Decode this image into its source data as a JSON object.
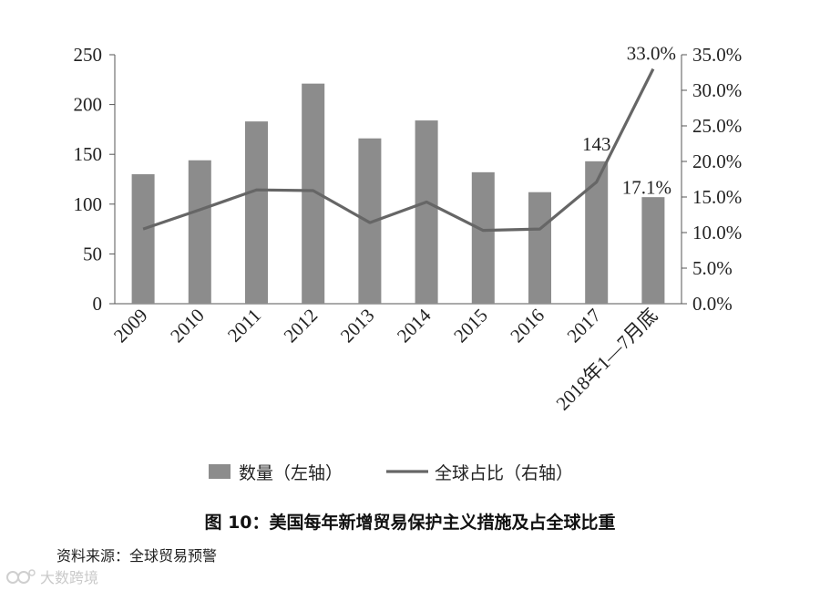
{
  "chart_data": {
    "type": "bar+line",
    "categories": [
      "2009",
      "2010",
      "2011",
      "2012",
      "2013",
      "2014",
      "2015",
      "2016",
      "2017",
      "2018年1—7月底"
    ],
    "series": [
      {
        "name": "数量（左轴）",
        "type": "bar",
        "axis": "left",
        "values": [
          130,
          144,
          183,
          221,
          166,
          184,
          132,
          112,
          143,
          107
        ]
      },
      {
        "name": "全球占比（右轴）",
        "type": "line",
        "axis": "right",
        "values": [
          10.5,
          13.2,
          16.0,
          15.9,
          11.4,
          14.3,
          10.3,
          10.5,
          17.1,
          33.0
        ]
      }
    ],
    "data_labels": {
      "bar_2017": "143",
      "line_2017": "17.1%",
      "line_2018": "33.0%"
    },
    "left_axis": {
      "min": 0,
      "max": 250,
      "ticks": [
        "0",
        "50",
        "100",
        "150",
        "200",
        "250"
      ]
    },
    "right_axis": {
      "min": 0,
      "max": 35,
      "ticks": [
        "0.0%",
        "5.0%",
        "10.0%",
        "15.0%",
        "20.0%",
        "25.0%",
        "30.0%",
        "35.0%"
      ]
    },
    "grid": false,
    "legend_position": "bottom",
    "colors": {
      "bar": "#8c8c8c",
      "line": "#666666",
      "axis": "#555555"
    }
  },
  "caption": "图 10：美国每年新增贸易保护主义措施及占全球比重",
  "source": "资料来源：全球贸易预警",
  "watermark": "大数跨境"
}
